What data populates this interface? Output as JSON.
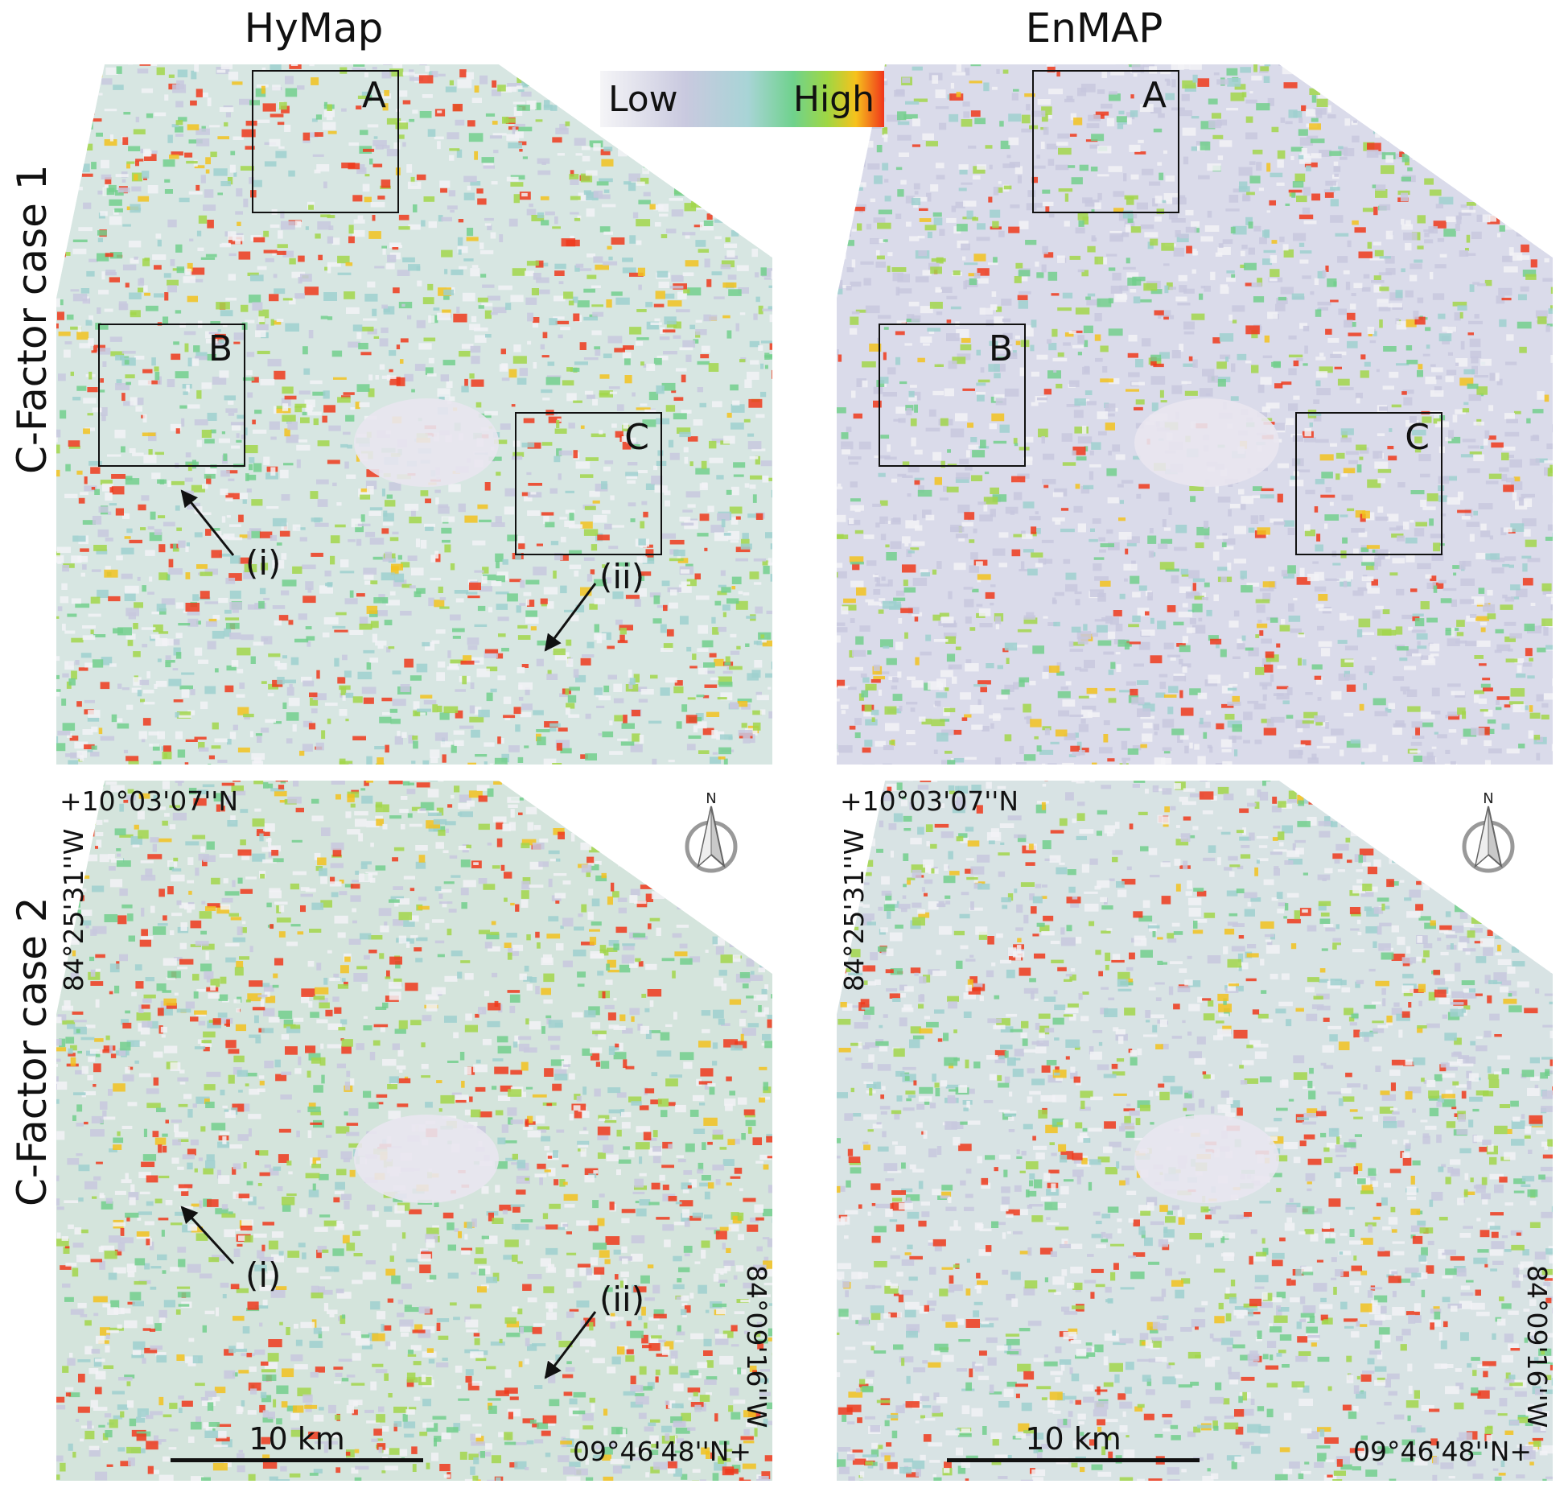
{
  "columns": [
    {
      "title": "HyMap"
    },
    {
      "title": "EnMAP"
    }
  ],
  "rows": [
    {
      "title": "C-Factor case 1"
    },
    {
      "title": "C-Factor case 2"
    }
  ],
  "legend": {
    "low_label": "Low",
    "high_label": "High",
    "colors": [
      "#f5f5f7",
      "#c9c9df",
      "#a8d4d6",
      "#6fd28d",
      "#9fd743",
      "#f6c21c",
      "#f0351b"
    ]
  },
  "boxes": {
    "a": "A",
    "b": "B",
    "c": "C"
  },
  "callouts": {
    "i": "(i)",
    "ii": "(ii)"
  },
  "coordinates": {
    "top_left_lat": "+10°03'07''N",
    "top_left_lon": "84°25'31''W",
    "bottom_right_lat": "09°46'48''N+",
    "bottom_right_lon": "84°09'16''W"
  },
  "scalebar": {
    "label": "10 km"
  },
  "north_arrow": {
    "label": "N"
  }
}
